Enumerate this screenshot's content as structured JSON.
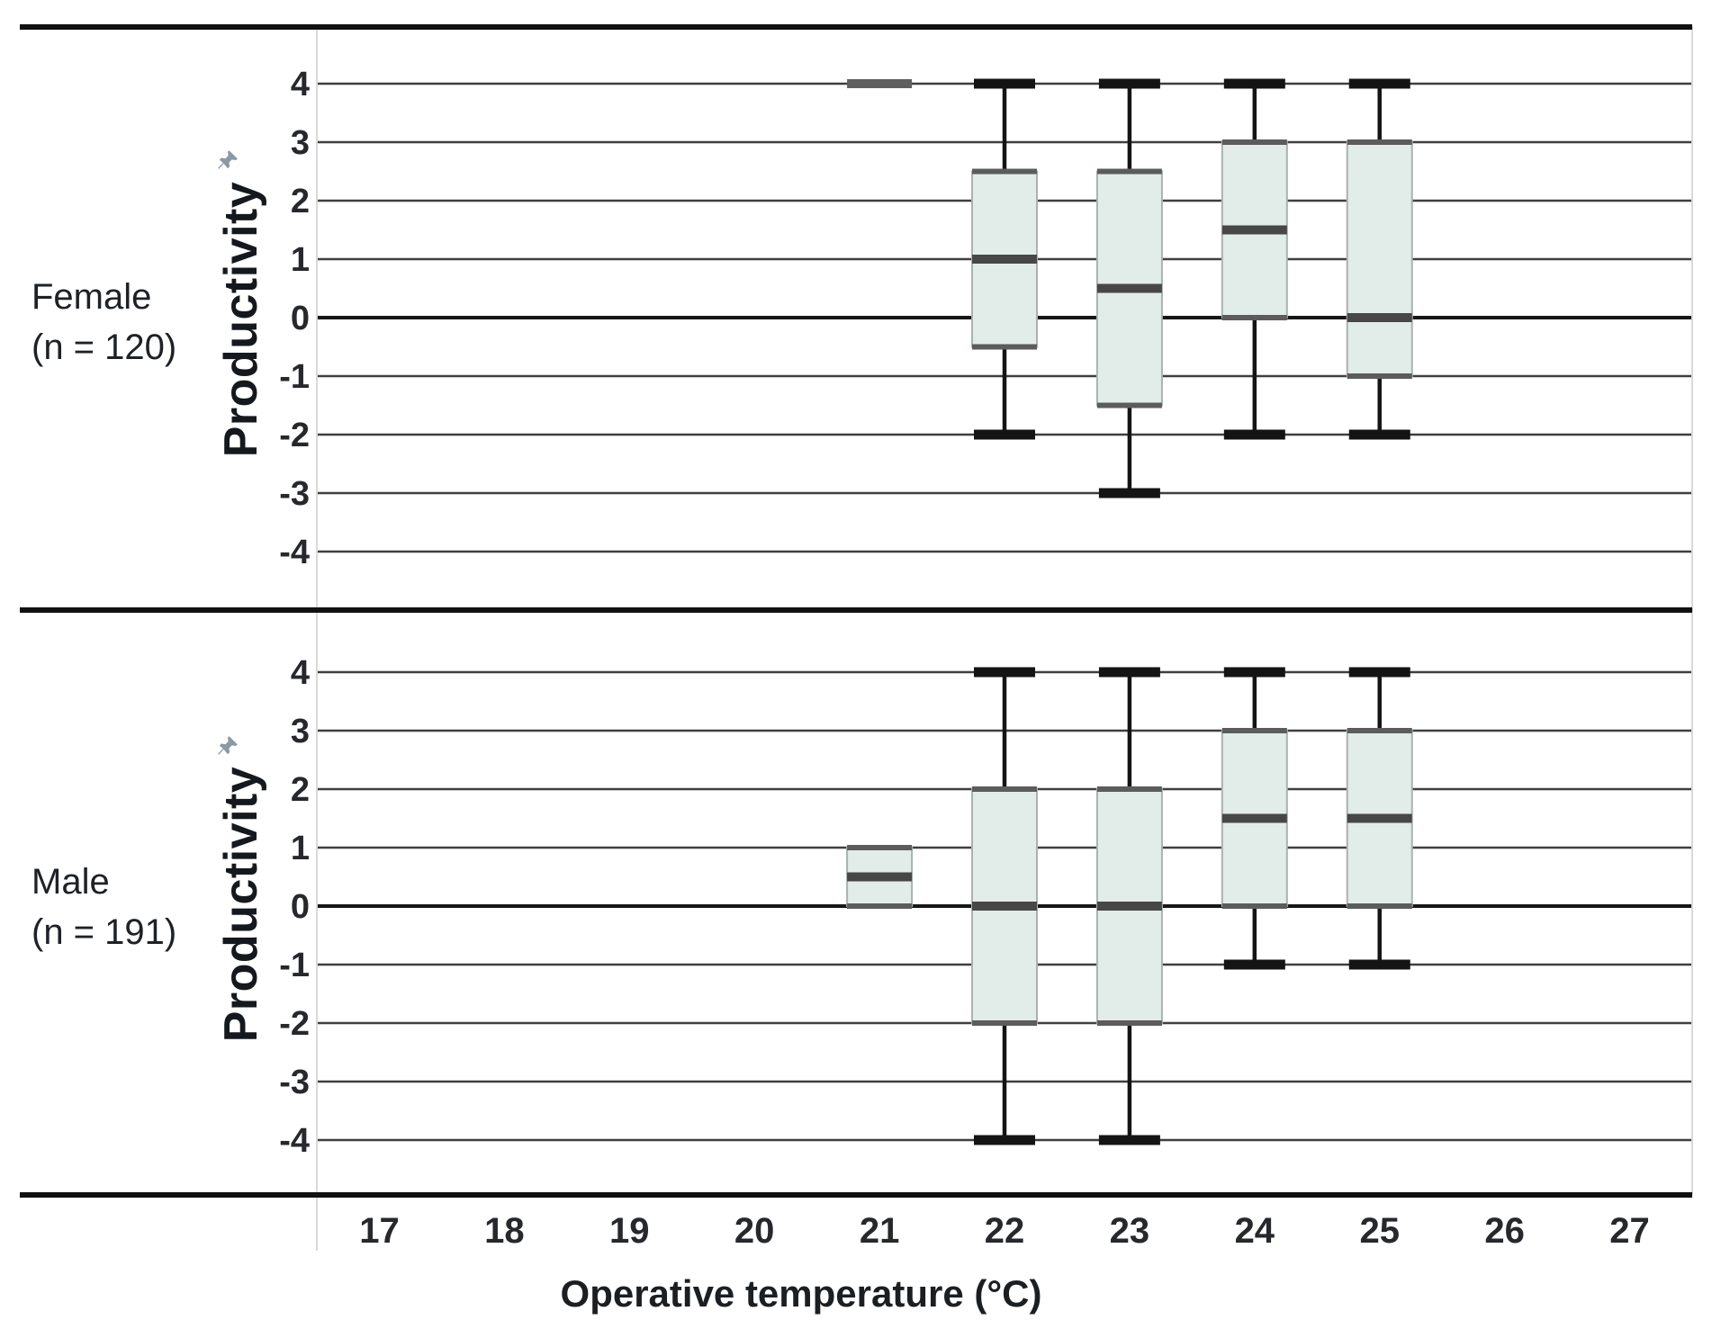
{
  "chart_data": {
    "type": "box",
    "xlabel": "Operative temperature (°C)",
    "ylabel": "Productivity",
    "x_ticks": [
      17,
      18,
      19,
      20,
      21,
      22,
      23,
      24,
      25,
      26,
      27
    ],
    "x_range": [
      16.5,
      27.5
    ],
    "y_ticks": [
      4,
      3,
      2,
      1,
      0,
      -1,
      -2,
      -3,
      -4
    ],
    "y_range_per_panel": [
      -5,
      5
    ],
    "grid": "horizontal gridlines on, zero line emphasized",
    "legend_position": "none",
    "panels": [
      {
        "label": "Female",
        "n_label": "(n = 120)",
        "boxes": [
          {
            "temp": 21,
            "whisker_low": 4,
            "q1": 4,
            "median": 4,
            "q3": 4,
            "whisker_high": 4
          },
          {
            "temp": 22,
            "whisker_low": -2,
            "q1": -0.5,
            "median": 1,
            "q3": 2.5,
            "whisker_high": 4
          },
          {
            "temp": 23,
            "whisker_low": -3,
            "q1": -1.5,
            "median": 0.5,
            "q3": 2.5,
            "whisker_high": 4
          },
          {
            "temp": 24,
            "whisker_low": -2,
            "q1": 0,
            "median": 1.5,
            "q3": 3,
            "whisker_high": 4
          },
          {
            "temp": 25,
            "whisker_low": -2,
            "q1": -1,
            "median": 0,
            "q3": 3,
            "whisker_high": 4
          }
        ]
      },
      {
        "label": "Male",
        "n_label": "(n = 191)",
        "boxes": [
          {
            "temp": 21,
            "whisker_low": 0,
            "q1": 0,
            "median": 0.5,
            "q3": 1,
            "whisker_high": 1
          },
          {
            "temp": 22,
            "whisker_low": -4,
            "q1": -2,
            "median": 0,
            "q3": 2,
            "whisker_high": 4
          },
          {
            "temp": 23,
            "whisker_low": -4,
            "q1": -2,
            "median": 0,
            "q3": 2,
            "whisker_high": 4
          },
          {
            "temp": 24,
            "whisker_low": -1,
            "q1": 0,
            "median": 1.5,
            "q3": 3,
            "whisker_high": 4
          },
          {
            "temp": 25,
            "whisker_low": -1,
            "q1": 0,
            "median": 1.5,
            "q3": 3,
            "whisker_high": 4
          }
        ]
      }
    ],
    "colors": {
      "box_fill": "#e2edea",
      "box_border": "#a9b2af",
      "box_edge": "#5c5c5c",
      "median": "#474747",
      "collapsed_bar": "#5f5f5f",
      "whisker": "#141414",
      "gridline": "#3f3f3f",
      "zero_line": "#161616",
      "frame": "#111111",
      "plot_edge": "#d9d9d9",
      "text": "#1e2126",
      "tick_text": "#26282c",
      "pin": "#8b98a5"
    }
  },
  "icons": {
    "y_axis_pin": "pin-icon"
  }
}
